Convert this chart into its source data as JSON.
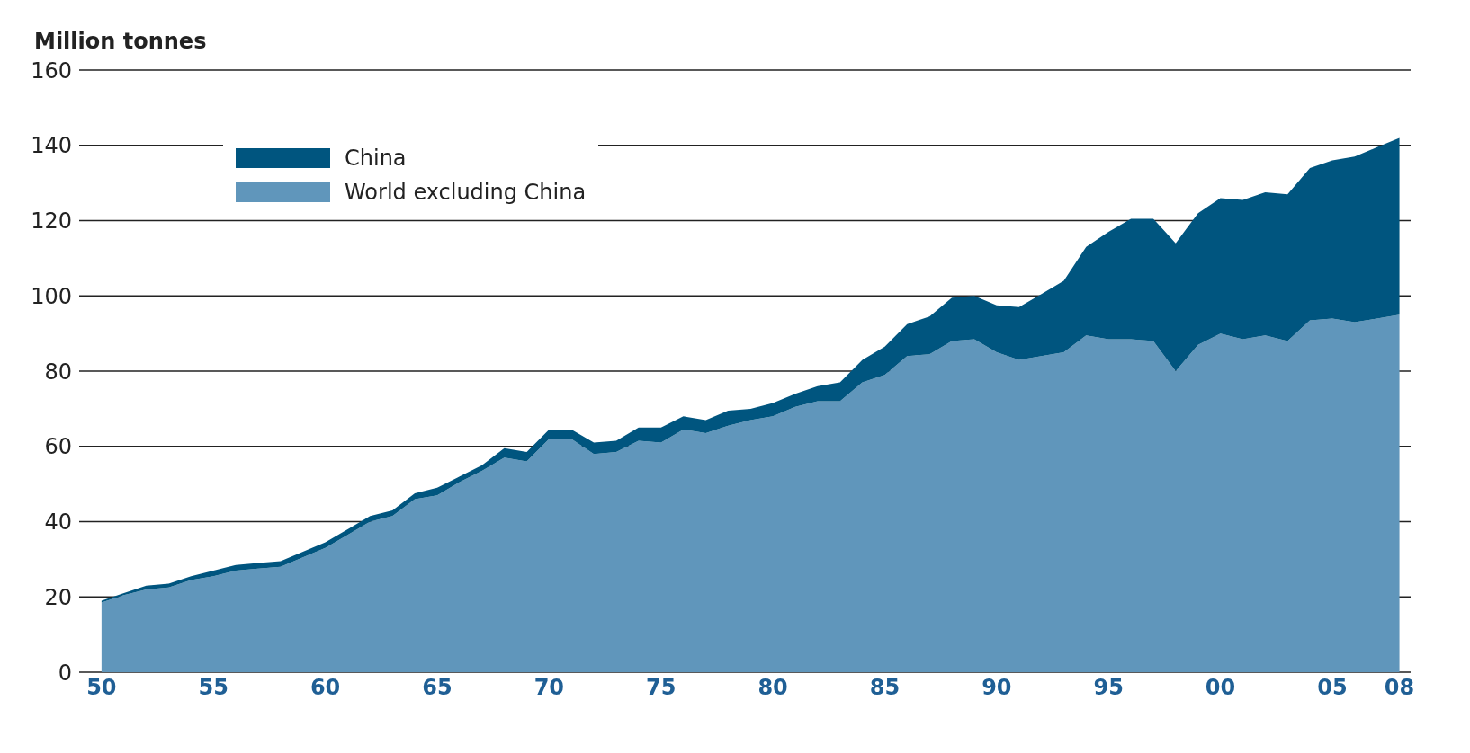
{
  "chart_data": {
    "type": "area",
    "stacked": true,
    "ylabel": "Million tonnes",
    "x": [
      1950,
      1951,
      1952,
      1953,
      1954,
      1955,
      1956,
      1957,
      1958,
      1959,
      1960,
      1961,
      1962,
      1963,
      1964,
      1965,
      1966,
      1967,
      1968,
      1969,
      1970,
      1971,
      1972,
      1973,
      1974,
      1975,
      1976,
      1977,
      1978,
      1979,
      1980,
      1981,
      1982,
      1983,
      1984,
      1985,
      1986,
      1987,
      1988,
      1989,
      1990,
      1991,
      1992,
      1993,
      1994,
      1995,
      1996,
      1997,
      1998,
      1999,
      2000,
      2001,
      2002,
      2003,
      2004,
      2005,
      2006,
      2007,
      2008
    ],
    "series": [
      {
        "name": "World excluding China",
        "color": "#6096bb",
        "values": [
          18.5,
          20.5,
          22,
          22.5,
          24.5,
          25.5,
          27,
          27.5,
          28,
          30.5,
          33,
          36.5,
          40,
          41.5,
          46,
          47,
          50.5,
          53.5,
          57,
          56,
          62,
          62,
          58,
          58.5,
          61.5,
          61,
          64.5,
          63.5,
          65.5,
          67,
          68,
          70.5,
          72,
          72,
          77,
          79,
          84,
          84.5,
          88,
          88.5,
          85,
          83,
          84,
          85,
          89.5,
          88.5,
          88.5,
          88,
          80,
          87,
          90,
          88.5,
          89.5,
          88,
          93.5,
          94,
          93,
          94,
          95
        ]
      },
      {
        "name": "China",
        "color": "#00557f",
        "values": [
          0.5,
          0.5,
          1,
          1,
          1,
          1.5,
          1.5,
          1.5,
          1.5,
          1.5,
          1.5,
          1.5,
          1.5,
          1.5,
          1.5,
          2,
          1.5,
          1.5,
          2.5,
          2.5,
          2.5,
          2.5,
          3,
          3,
          3.5,
          4,
          3.5,
          3.5,
          4,
          3,
          3.5,
          3.5,
          4,
          5,
          6,
          7.5,
          8.5,
          10,
          11.5,
          11.5,
          12.5,
          14,
          16.5,
          19,
          23.5,
          28.5,
          32,
          32.5,
          34,
          35,
          36,
          37,
          38,
          39,
          40.5,
          42,
          44,
          45.5,
          47
        ]
      }
    ],
    "xlim": [
      1949,
      2008.5
    ],
    "xticks": [
      {
        "value": 1950,
        "label": "50"
      },
      {
        "value": 1955,
        "label": "55"
      },
      {
        "value": 1960,
        "label": "60"
      },
      {
        "value": 1965,
        "label": "65"
      },
      {
        "value": 1970,
        "label": "70"
      },
      {
        "value": 1975,
        "label": "75"
      },
      {
        "value": 1980,
        "label": "80"
      },
      {
        "value": 1985,
        "label": "85"
      },
      {
        "value": 1990,
        "label": "90"
      },
      {
        "value": 1995,
        "label": "95"
      },
      {
        "value": 2000,
        "label": "00"
      },
      {
        "value": 2005,
        "label": "05"
      },
      {
        "value": 2008,
        "label": "08"
      }
    ],
    "ylim": [
      0,
      160
    ],
    "yticks": [
      0,
      20,
      40,
      60,
      80,
      100,
      120,
      140,
      160
    ],
    "grid": "y",
    "legend": "top left"
  }
}
